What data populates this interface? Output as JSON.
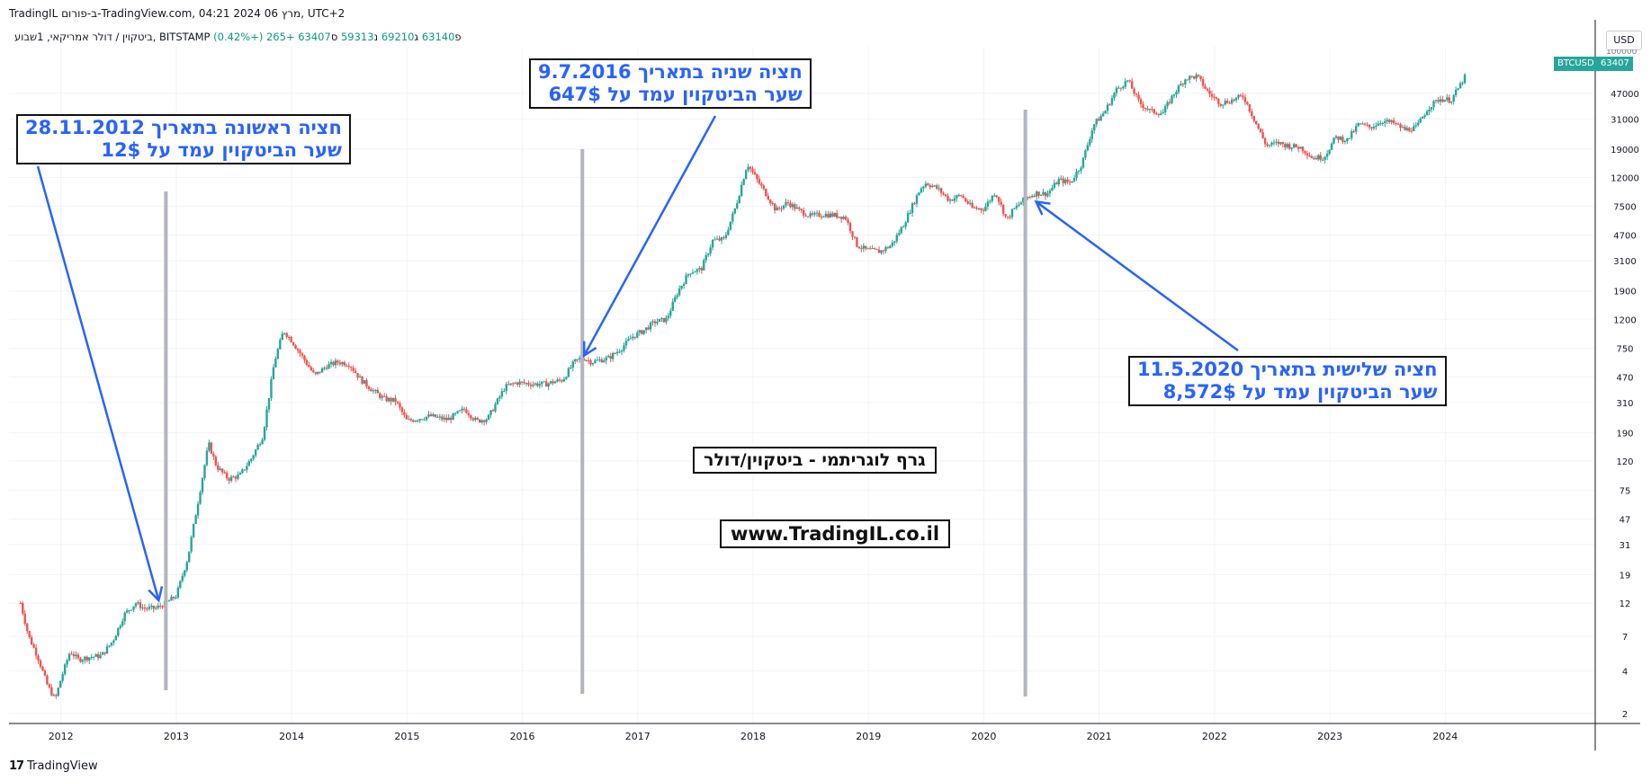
{
  "header": {
    "title_line": "TradingIL ב-פורום-TradingView.com, 04:21 2024 מרץ 06, UTC+2",
    "symbol_desc": "ביטקוין / דולר אמריקאי, 1שבוע, BITSTAMP",
    "ohlc": {
      "open_label": "פ",
      "open": "63140",
      "high_label": "ג",
      "high": "69210",
      "low_label": "נ",
      "low": "59313",
      "close_label": "ס",
      "close": "63407",
      "change": "+265 (+0.42%)"
    },
    "currency": "USD"
  },
  "price_tags": {
    "symbol": "BTCUSD",
    "last": "63407",
    "top_partial": "100000"
  },
  "annotations": {
    "halving1": {
      "line1": "חציה ראשונה בתאריך 28.11.2012",
      "line2": "שער הביטקוין עמד על 12$"
    },
    "halving2": {
      "line1": "חציה שניה בתאריך 9.7.2016",
      "line2": "שער הביטקוין עמד על 647$"
    },
    "halving3": {
      "line1": "חציה שלישית בתאריך 11.5.2020",
      "line2": "שער הביטקוין עמד על 8,572$"
    },
    "chart_caption": "גרף לוגריתמי - ביטקוין/דולר",
    "website": "www.TradingIL.co.il"
  },
  "footer": {
    "brand": "TradingView"
  },
  "colors": {
    "up": "#26a69a",
    "down": "#ef5350",
    "annotation_blue": "#2962ff",
    "halving_line": "#b2b5be",
    "grid": "#f0f3fa",
    "last_price_tag": "#26a69a"
  },
  "chart_data": {
    "type": "candlestick",
    "scale": "log",
    "interval": "1W",
    "x_ticks": [
      "2012",
      "2013",
      "2014",
      "2015",
      "2016",
      "2017",
      "2018",
      "2019",
      "2020",
      "2021",
      "2022",
      "2023",
      "2024"
    ],
    "y_ticks": [
      2,
      4,
      7,
      12,
      19,
      31,
      47,
      75,
      120,
      190,
      310,
      470,
      750,
      1200,
      1900,
      3100,
      4700,
      7500,
      12000,
      19000,
      31000,
      47000
    ],
    "y_range": [
      1.7,
      100000
    ],
    "x_range": [
      2011.55,
      2025.3
    ],
    "halvings": [
      {
        "date": 2012.91,
        "price": 12
      },
      {
        "date": 2016.52,
        "price": 647
      },
      {
        "date": 2020.36,
        "price": 8572
      }
    ],
    "price_path": [
      [
        2011.65,
        12
      ],
      [
        2011.72,
        7
      ],
      [
        2011.8,
        5
      ],
      [
        2011.88,
        3.2
      ],
      [
        2011.95,
        2.5
      ],
      [
        2012.0,
        3.5
      ],
      [
        2012.08,
        5.5
      ],
      [
        2012.15,
        4.8
      ],
      [
        2012.25,
        5
      ],
      [
        2012.35,
        5.1
      ],
      [
        2012.45,
        6.5
      ],
      [
        2012.55,
        10
      ],
      [
        2012.65,
        12
      ],
      [
        2012.72,
        11
      ],
      [
        2012.82,
        11
      ],
      [
        2012.91,
        12
      ],
      [
        2013.0,
        13.5
      ],
      [
        2013.1,
        25
      ],
      [
        2013.2,
        70
      ],
      [
        2013.28,
        160
      ],
      [
        2013.35,
        110
      ],
      [
        2013.45,
        90
      ],
      [
        2013.55,
        95
      ],
      [
        2013.65,
        125
      ],
      [
        2013.75,
        180
      ],
      [
        2013.85,
        600
      ],
      [
        2013.93,
        1000
      ],
      [
        2014.0,
        850
      ],
      [
        2014.1,
        640
      ],
      [
        2014.2,
        480
      ],
      [
        2014.3,
        560
      ],
      [
        2014.4,
        600
      ],
      [
        2014.5,
        580
      ],
      [
        2014.6,
        450
      ],
      [
        2014.7,
        380
      ],
      [
        2014.8,
        330
      ],
      [
        2014.9,
        320
      ],
      [
        2015.0,
        230
      ],
      [
        2015.1,
        240
      ],
      [
        2015.2,
        250
      ],
      [
        2015.35,
        235
      ],
      [
        2015.5,
        280
      ],
      [
        2015.6,
        230
      ],
      [
        2015.7,
        240
      ],
      [
        2015.85,
        400
      ],
      [
        2015.95,
        430
      ],
      [
        2016.1,
        420
      ],
      [
        2016.2,
        420
      ],
      [
        2016.35,
        450
      ],
      [
        2016.45,
        600
      ],
      [
        2016.52,
        647
      ],
      [
        2016.6,
        600
      ],
      [
        2016.75,
        640
      ],
      [
        2016.85,
        740
      ],
      [
        2016.95,
        900
      ],
      [
        2017.05,
        1000
      ],
      [
        2017.15,
        1150
      ],
      [
        2017.25,
        1200
      ],
      [
        2017.35,
        1900
      ],
      [
        2017.45,
        2600
      ],
      [
        2017.55,
        2700
      ],
      [
        2017.65,
        4300
      ],
      [
        2017.75,
        4400
      ],
      [
        2017.85,
        7500
      ],
      [
        2017.95,
        15000
      ],
      [
        2018.05,
        11000
      ],
      [
        2018.12,
        9000
      ],
      [
        2018.2,
        7000
      ],
      [
        2018.3,
        8000
      ],
      [
        2018.4,
        7000
      ],
      [
        2018.5,
        6400
      ],
      [
        2018.6,
        6600
      ],
      [
        2018.7,
        6500
      ],
      [
        2018.8,
        6300
      ],
      [
        2018.9,
        4000
      ],
      [
        2018.98,
        3700
      ],
      [
        2019.1,
        3600
      ],
      [
        2019.2,
        4000
      ],
      [
        2019.3,
        5500
      ],
      [
        2019.45,
        10000
      ],
      [
        2019.5,
        11000
      ],
      [
        2019.6,
        10000
      ],
      [
        2019.7,
        8300
      ],
      [
        2019.8,
        9000
      ],
      [
        2019.9,
        7300
      ],
      [
        2020.0,
        7200
      ],
      [
        2020.1,
        9500
      ],
      [
        2020.2,
        6000
      ],
      [
        2020.25,
        7000
      ],
      [
        2020.36,
        8572
      ],
      [
        2020.45,
        9300
      ],
      [
        2020.55,
        9200
      ],
      [
        2020.65,
        11500
      ],
      [
        2020.75,
        11000
      ],
      [
        2020.85,
        15000
      ],
      [
        2020.95,
        28000
      ],
      [
        2021.05,
        35000
      ],
      [
        2021.15,
        50000
      ],
      [
        2021.25,
        58000
      ],
      [
        2021.35,
        40000
      ],
      [
        2021.45,
        35000
      ],
      [
        2021.55,
        34000
      ],
      [
        2021.65,
        47000
      ],
      [
        2021.75,
        60000
      ],
      [
        2021.85,
        62000
      ],
      [
        2021.95,
        47000
      ],
      [
        2022.05,
        40000
      ],
      [
        2022.15,
        42000
      ],
      [
        2022.25,
        45000
      ],
      [
        2022.35,
        30000
      ],
      [
        2022.45,
        20000
      ],
      [
        2022.55,
        21000
      ],
      [
        2022.65,
        20000
      ],
      [
        2022.75,
        19500
      ],
      [
        2022.85,
        16500
      ],
      [
        2022.95,
        16700
      ],
      [
        2023.05,
        23000
      ],
      [
        2023.15,
        22000
      ],
      [
        2023.25,
        28500
      ],
      [
        2023.35,
        27000
      ],
      [
        2023.45,
        30000
      ],
      [
        2023.55,
        29000
      ],
      [
        2023.65,
        26000
      ],
      [
        2023.75,
        27000
      ],
      [
        2023.85,
        37000
      ],
      [
        2023.95,
        43000
      ],
      [
        2024.05,
        42000
      ],
      [
        2024.12,
        52000
      ],
      [
        2024.18,
        63407
      ]
    ]
  }
}
